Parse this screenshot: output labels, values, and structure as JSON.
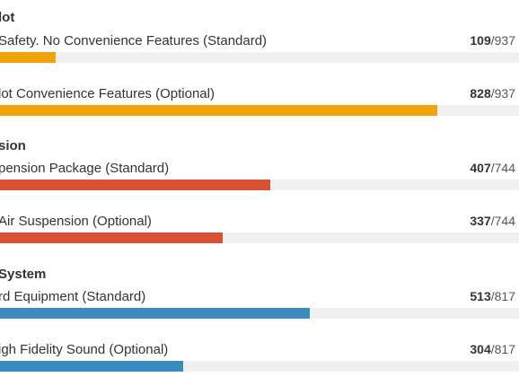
{
  "sections": [
    {
      "title": "lot",
      "color": "#f0a30a",
      "options": [
        {
          "label": "Safety. No Convenience Features (Standard)",
          "count": 109,
          "total": 937
        },
        {
          "label": "lot Convenience Features (Optional)",
          "count": 828,
          "total": 937
        }
      ]
    },
    {
      "title": "sion",
      "color": "#d95035",
      "options": [
        {
          "label": "pension Package (Standard)",
          "count": 407,
          "total": 744
        },
        {
          "label": "Air Suspension (Optional)",
          "count": 337,
          "total": 744
        }
      ]
    },
    {
      "title": "System",
      "color": "#3b8bbf",
      "options": [
        {
          "label": "rd Equipment (Standard)",
          "count": 513,
          "total": 817
        },
        {
          "label": "igh Fidelity Sound (Optional)",
          "count": 304,
          "total": 817
        }
      ]
    }
  ]
}
